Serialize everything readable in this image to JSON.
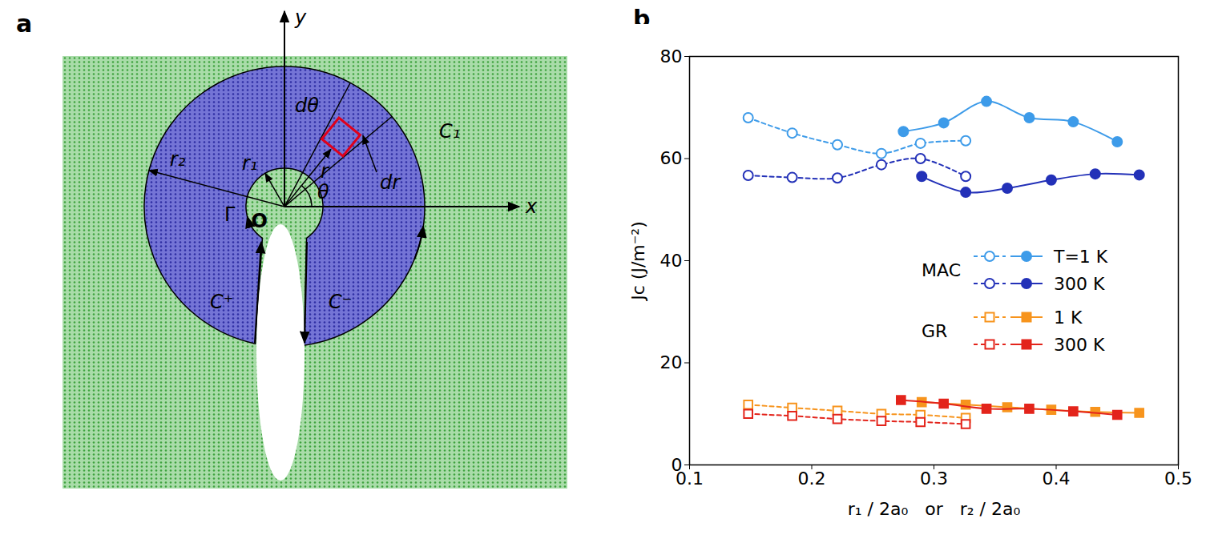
{
  "diagram": {
    "panel_label": "a",
    "labels": {
      "x": "x",
      "y": "y",
      "origin": "O",
      "r1": "r₁",
      "r2": "r₂",
      "r": "r",
      "theta": "θ",
      "dtheta": "dθ",
      "dr": "dr",
      "C1": "C₁",
      "Gamma": "Γ",
      "Cplus": "C⁺",
      "Cminus": "C⁻"
    }
  },
  "chart_data": {
    "type": "line",
    "panel_label": "b",
    "x_label": "r₁ / 2a₀   or   r₂ / 2a₀",
    "y_label": "Jᴄ (J/m⁻²)",
    "xlim": [
      0.1,
      0.5
    ],
    "xticks": [
      0.1,
      0.2,
      0.3,
      0.4,
      0.5
    ],
    "ylim": [
      0,
      80
    ],
    "yticks": [
      0,
      20,
      40,
      60,
      80
    ],
    "legend": "right",
    "series": [
      {
        "group": "MAC",
        "name": "T=1 K",
        "color": "#3d9be9",
        "marker": "circle-open",
        "line_style": "dashed",
        "x": [
          0.148,
          0.184,
          0.221,
          0.257,
          0.289,
          0.326
        ],
        "values": [
          68,
          65,
          62.7,
          61,
          63,
          63.5
        ]
      },
      {
        "group": "MAC",
        "name": "T=1 K",
        "color": "#3d9be9",
        "marker": "circle",
        "line_style": "solid",
        "x": [
          0.275,
          0.308,
          0.343,
          0.378,
          0.414,
          0.45
        ],
        "values": [
          65.3,
          67,
          71.2,
          68,
          67.2,
          63.3
        ]
      },
      {
        "group": "MAC",
        "name": "300 K",
        "color": "#2331b8",
        "marker": "circle-open",
        "line_style": "dashed",
        "x": [
          0.148,
          0.184,
          0.221,
          0.257,
          0.289,
          0.326
        ],
        "values": [
          56.7,
          56.3,
          56.2,
          58.8,
          60,
          56.5
        ]
      },
      {
        "group": "MAC",
        "name": "300 K",
        "color": "#2331b8",
        "marker": "circle",
        "line_style": "solid",
        "x": [
          0.29,
          0.326,
          0.36,
          0.396,
          0.432,
          0.468
        ],
        "values": [
          56.5,
          53.4,
          54.2,
          55.8,
          57,
          56.8
        ]
      },
      {
        "group": "GR",
        "name": "1 K",
        "color": "#f7941d",
        "marker": "square-open",
        "line_style": "dashed",
        "x": [
          0.148,
          0.184,
          0.221,
          0.257,
          0.289,
          0.326
        ],
        "values": [
          11.8,
          11.2,
          10.6,
          10,
          9.8,
          9.2
        ]
      },
      {
        "group": "GR",
        "name": "1 K",
        "color": "#f7941d",
        "marker": "square",
        "line_style": "solid",
        "x": [
          0.29,
          0.326,
          0.36,
          0.396,
          0.432,
          0.468
        ],
        "values": [
          12.3,
          11.8,
          11.3,
          10.8,
          10.4,
          10.2
        ]
      },
      {
        "group": "GR",
        "name": "300 K",
        "color": "#e3241b",
        "marker": "square-open",
        "line_style": "dashed",
        "x": [
          0.148,
          0.184,
          0.221,
          0.257,
          0.289,
          0.326
        ],
        "values": [
          10,
          9.6,
          9,
          8.6,
          8.4,
          8
        ]
      },
      {
        "group": "GR",
        "name": "300 K",
        "color": "#e3241b",
        "marker": "square",
        "line_style": "solid",
        "x": [
          0.273,
          0.308,
          0.343,
          0.378,
          0.414,
          0.45
        ],
        "values": [
          12.7,
          12,
          11,
          11,
          10.5,
          9.8
        ]
      }
    ]
  }
}
